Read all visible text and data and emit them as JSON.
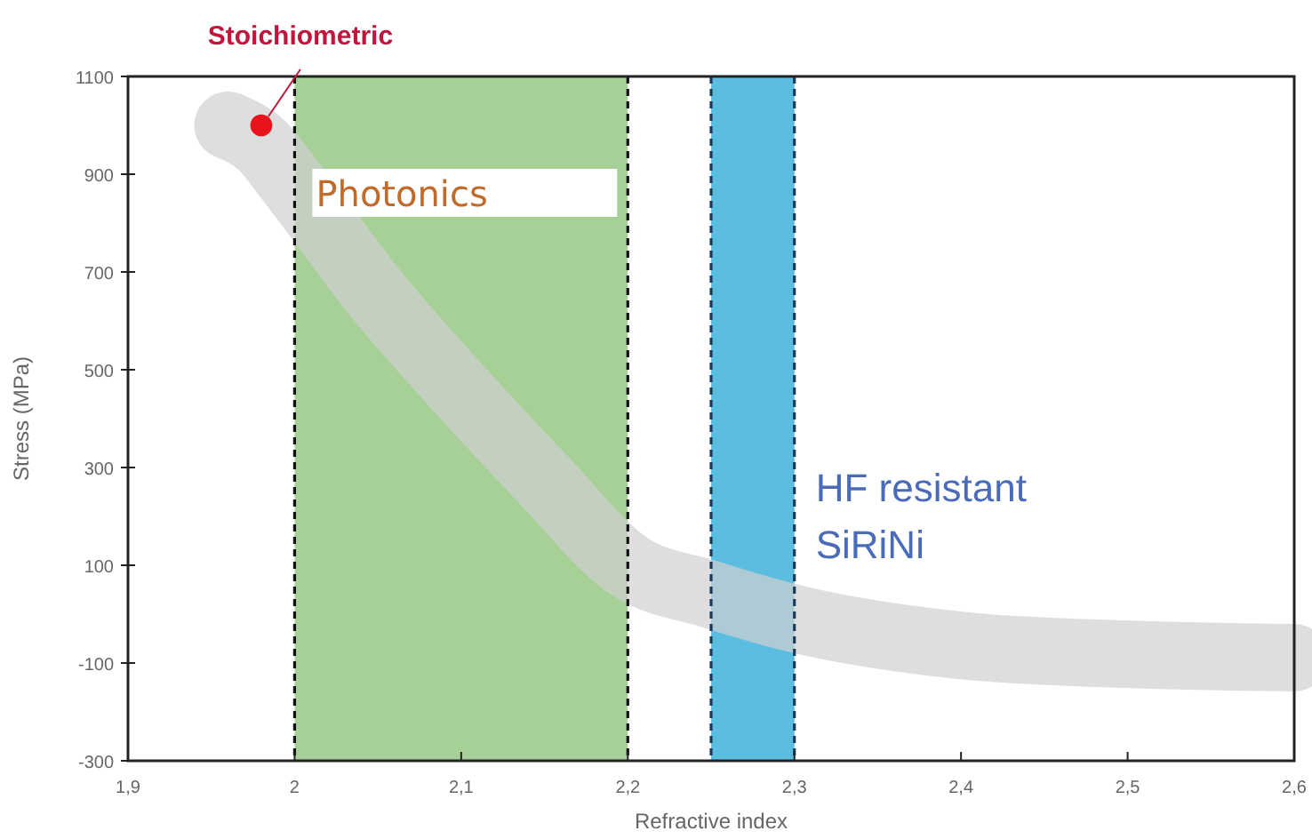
{
  "chart_data": {
    "type": "line",
    "xlabel": "Refractive index",
    "ylabel": "Stress (MPa)",
    "xlim": [
      1.9,
      2.6
    ],
    "ylim": [
      -300,
      1100
    ],
    "xticks": [
      {
        "value": 1.9,
        "label": "1,9"
      },
      2,
      {
        "value": 2.1,
        "label": "2,1"
      },
      {
        "value": 2.2,
        "label": "2,2"
      },
      {
        "value": 2.3,
        "label": "2,3"
      },
      {
        "value": 2.4,
        "label": "2,4"
      },
      {
        "value": 2.5,
        "label": "2,5"
      },
      {
        "value": 2.6,
        "label": "2,6"
      }
    ],
    "yticks": [
      -300,
      -100,
      100,
      300,
      500,
      700,
      900,
      1100
    ],
    "series": [
      {
        "color": "#d0d0d0",
        "x": [
          1.96,
          1.98,
          2.0,
          2.05,
          2.1,
          2.15,
          2.2,
          2.25,
          2.3,
          2.4,
          2.5,
          2.6
        ],
        "values": [
          1000,
          960,
          875,
          650,
          456,
          273,
          100,
          40,
          -9,
          -64,
          -82,
          -89
        ]
      },
      {
        "type": "scatter",
        "color": "#e8131b",
        "marker": "circle",
        "x": [
          1.98
        ],
        "values": [
          1000
        ]
      }
    ],
    "bands": [
      {
        "axis": "x",
        "from": 2.0,
        "to": 2.2,
        "label": "Photonics",
        "color": "#a6d096"
      },
      {
        "axis": "x",
        "from": 2.25,
        "to": 2.3,
        "label": "HF resistant\nSiRiNi",
        "color": "#5bbde0"
      }
    ],
    "ref_lines": [
      {
        "axis": "x",
        "value": 2.0,
        "color": "#111111",
        "line_style": "dashed"
      },
      {
        "axis": "x",
        "value": 2.2,
        "color": "#111111",
        "line_style": "dashed"
      },
      {
        "axis": "x",
        "value": 2.25,
        "color": "#1a3a5a",
        "line_style": "dashed"
      },
      {
        "axis": "x",
        "value": 2.3,
        "color": "#1a3a5a",
        "line_style": "dashed"
      }
    ],
    "annotations": [
      {
        "text": "Stoichiometric",
        "x": 1.98,
        "y": 1000
      }
    ]
  }
}
